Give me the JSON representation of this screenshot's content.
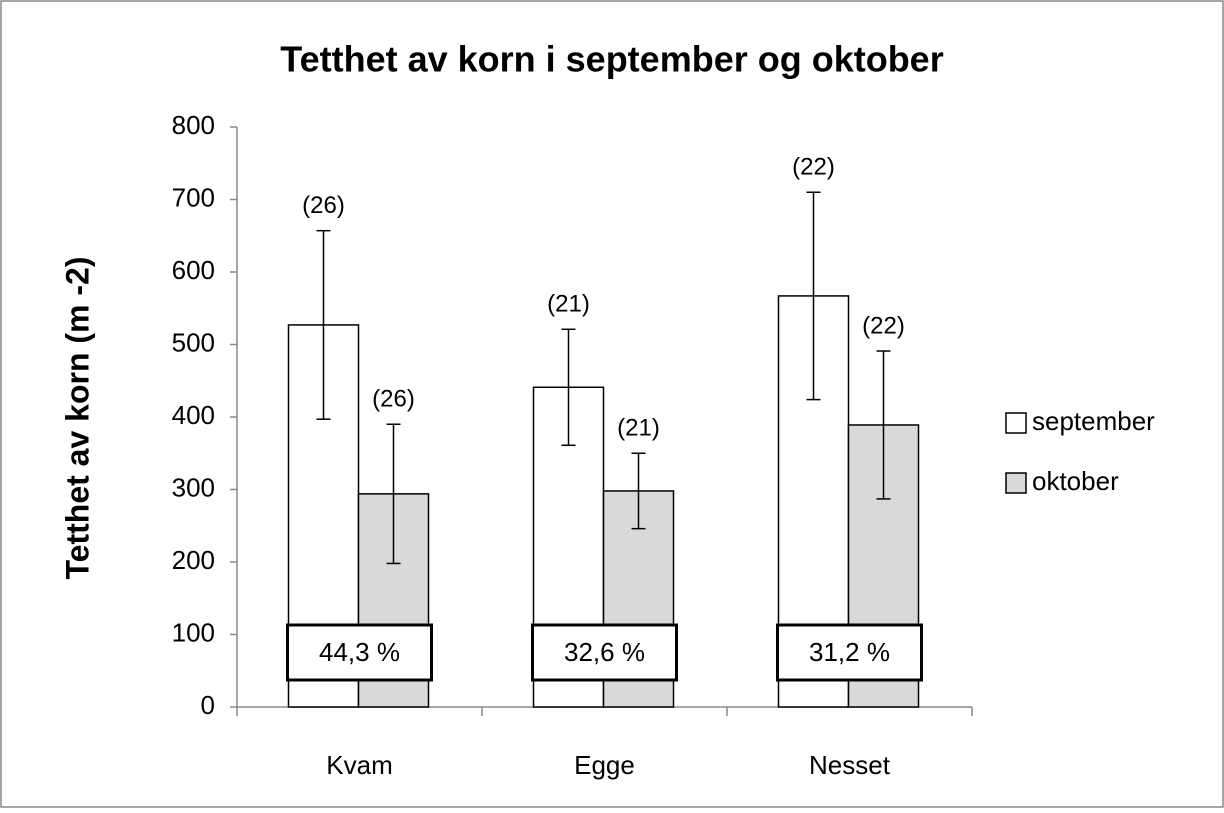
{
  "chart_data": {
    "type": "bar",
    "title": "Tetthet av korn i september og oktober",
    "y_label": "Tetthet av korn (m -2)",
    "categories": [
      "Kvam",
      "Egge",
      "Nesset"
    ],
    "series": [
      {
        "name": "september",
        "color": "#ffffff",
        "values": [
          527,
          441,
          567
        ],
        "errors": [
          130,
          80,
          143
        ],
        "annotations": [
          "(26)",
          "(21)",
          "(22)"
        ]
      },
      {
        "name": "oktober",
        "color": "#d9d9d9",
        "values": [
          294,
          298,
          389
        ],
        "errors": [
          96,
          52,
          102
        ],
        "annotations": [
          "(26)",
          "(21)",
          "(22)"
        ]
      }
    ],
    "category_annotations": [
      "44,3 %",
      "32,6 %",
      "31,2 %"
    ],
    "ylim": [
      0,
      800
    ],
    "yticks": [
      0,
      100,
      200,
      300,
      400,
      500,
      600,
      700,
      800
    ],
    "legend": "right"
  }
}
